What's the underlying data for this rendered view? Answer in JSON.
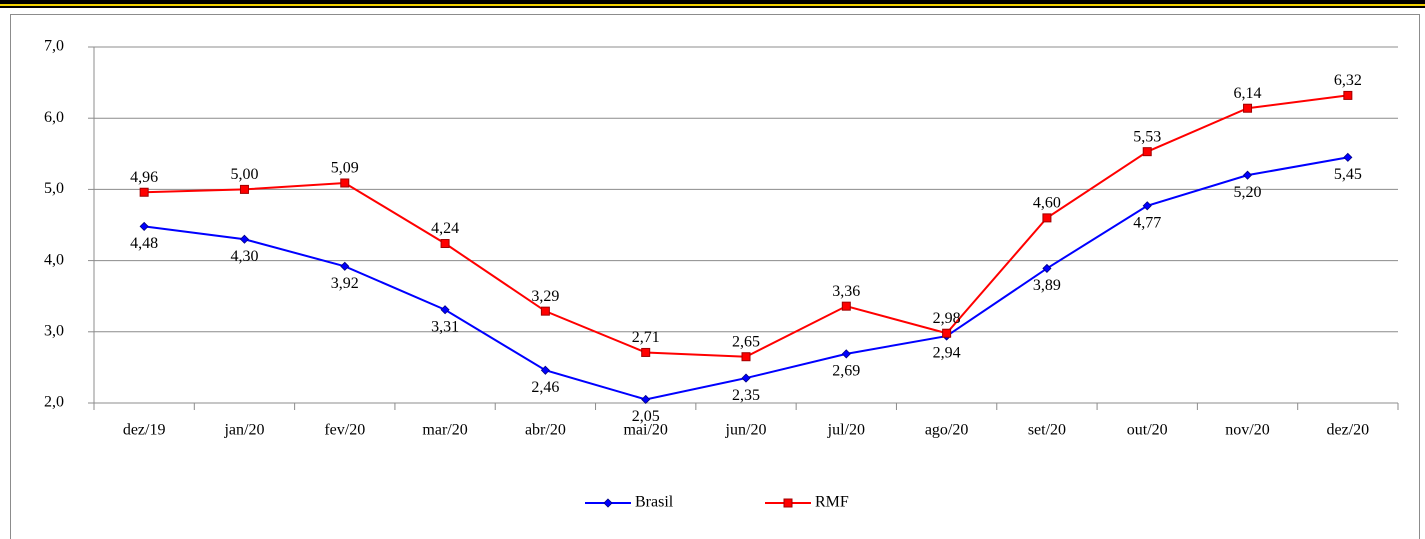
{
  "chart_data": {
    "type": "line",
    "categories": [
      "dez/19",
      "jan/20",
      "fev/20",
      "mar/20",
      "abr/20",
      "mai/20",
      "jun/20",
      "jul/20",
      "ago/20",
      "set/20",
      "out/20",
      "nov/20",
      "dez/20"
    ],
    "series": [
      {
        "name": "Brasil",
        "color": "#0000ff",
        "marker": "diamond",
        "values": [
          4.48,
          4.3,
          3.92,
          3.31,
          2.46,
          2.05,
          2.35,
          2.69,
          2.94,
          3.89,
          4.77,
          5.2,
          5.45
        ],
        "value_labels": [
          "4,48",
          "4,30",
          "3,92",
          "3,31",
          "2,46",
          "2,05",
          "2,35",
          "2,69",
          "2,94",
          "3,89",
          "4,77",
          "5,20",
          "5,45"
        ]
      },
      {
        "name": "RMF",
        "color": "#ff0000",
        "marker": "square",
        "values": [
          4.96,
          5.0,
          5.09,
          4.24,
          3.29,
          2.71,
          2.65,
          3.36,
          2.98,
          4.6,
          5.53,
          6.14,
          6.32
        ],
        "value_labels": [
          "4,96",
          "5,00",
          "5,09",
          "4,24",
          "3,29",
          "2,71",
          "2,65",
          "3,36",
          "2,98",
          "4,60",
          "5,53",
          "6,14",
          "6,32"
        ]
      }
    ],
    "ylim": [
      2,
      7
    ],
    "yticks": [
      {
        "value": 2,
        "label": "2,0"
      },
      {
        "value": 3,
        "label": "3,0"
      },
      {
        "value": 4,
        "label": "4,0"
      },
      {
        "value": 5,
        "label": "5,0"
      },
      {
        "value": 6,
        "label": "6,0"
      },
      {
        "value": 7,
        "label": "7,0"
      }
    ],
    "grid": true,
    "legend": "bottom"
  }
}
